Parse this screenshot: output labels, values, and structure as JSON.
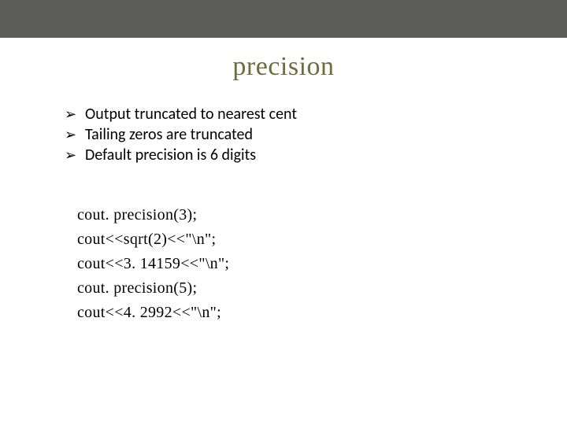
{
  "slide": {
    "top_bar_color": "#5c5d59",
    "background_color": "#ffffff",
    "title": "precision",
    "title_color": "#6b6d3a",
    "title_fontsize": 34,
    "bullets": [
      "Output truncated to nearest cent",
      "Tailing zeros are truncated",
      "Default precision is 6 digits"
    ],
    "bullet_marker": "➢",
    "bullet_fontsize": 20,
    "code": [
      "cout. precision(3);",
      "cout<<sqrt(2)<<\"\\n\";",
      "cout<<3. 14159<<\"\\n\";",
      "cout. precision(5);",
      "cout<<4. 2992<<\"\\n\";"
    ],
    "code_fontsize": 20
  }
}
